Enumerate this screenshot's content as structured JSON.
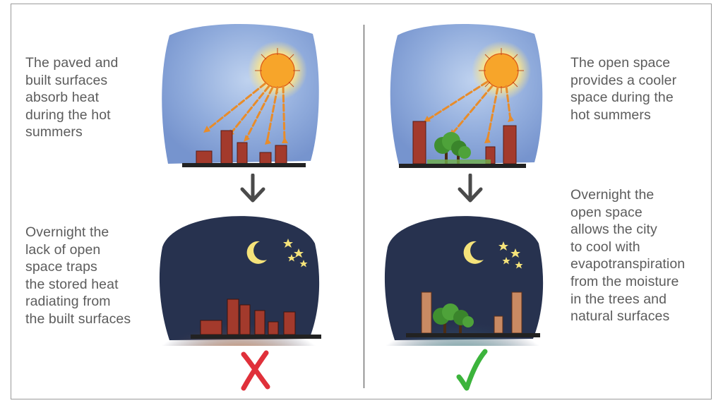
{
  "captions": {
    "day_built": "The paved and\nbuilt surfaces\nabsorb heat\nduring the hot\nsummers",
    "night_built": "Overnight the\nlack of open\nspace traps\nthe stored heat\nradiating from\nthe built surfaces",
    "day_open": "The open space\nprovides a cooler\nspace during the\nhot summers",
    "night_open": "Overnight the\nopen space\nallows the city\nto cool with\nevapotranspiration\nfrom the moisture\nin the trees and\nnatural surfaces"
  },
  "icons": {
    "sun": "sun-icon",
    "moon": "moon-icon",
    "stars": "stars-icon",
    "tree": "tree-icon",
    "down_arrow": "down-arrow-icon",
    "cross": "cross-icon",
    "check": "check-icon"
  },
  "colors": {
    "sky_day": "#7f9fd3",
    "sky_night": "#24304f",
    "sun": "#f6a526",
    "heat_rays": "#e88c2a",
    "buildings": "#a33a2c",
    "trees": "#3c8a2e",
    "cross": "#e0303a",
    "check": "#3cb43c",
    "arrow": "#4a4a4a",
    "text": "#5c5c5c"
  }
}
